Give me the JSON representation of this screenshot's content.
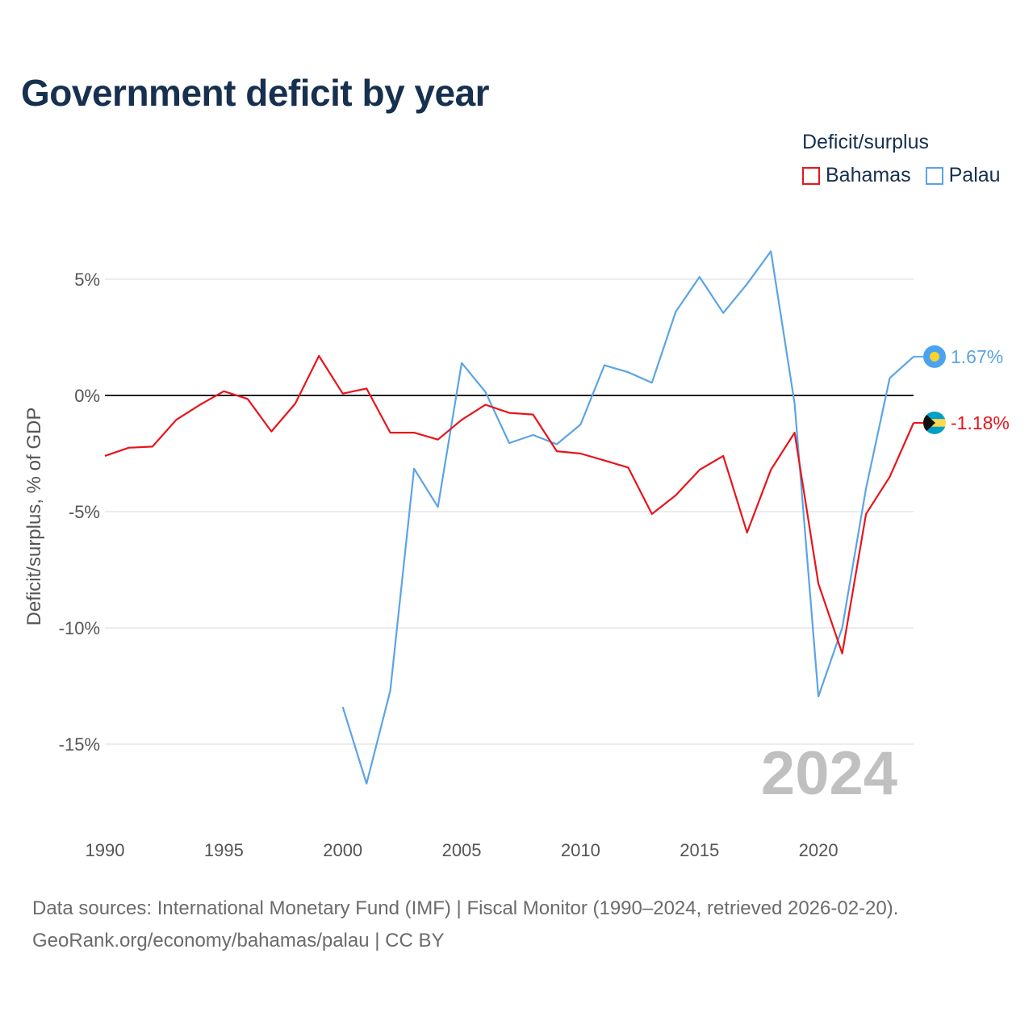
{
  "title": "Government deficit by year",
  "legend": {
    "title": "Deficit/surplus",
    "items": [
      {
        "name": "Bahamas",
        "color": "#e8141b"
      },
      {
        "name": "Palau",
        "color": "#5ba4e5"
      }
    ]
  },
  "colors": {
    "bahamas": "#e8141b",
    "palau": "#5ba4e5",
    "zero_line": "#222222",
    "grid": "#e6e6e6"
  },
  "watermark_year": "2024",
  "footer": {
    "sources": "Data sources: International Monetary Fund (IMF) | Fiscal Monitor (1990–2024, retrieved 2026-02-20).",
    "credit": "GeoRank.org/economy/bahamas/palau | CC BY"
  },
  "chart_data": {
    "type": "line",
    "title": "Government deficit by year",
    "xlabel": "",
    "ylabel": "Deficit/surplus, % of GDP",
    "xlim": [
      1990,
      2024
    ],
    "ylim": [
      -18,
      7
    ],
    "x_ticks": [
      1990,
      1995,
      2000,
      2005,
      2010,
      2015,
      2020
    ],
    "x_tick_labels": [
      "1990",
      "1995",
      "2000",
      "2005",
      "2010",
      "2015",
      "2020"
    ],
    "y_ticks": [
      5,
      0,
      -5,
      -10,
      -15
    ],
    "y_tick_labels": [
      "5%",
      "0%",
      "-5%",
      "-10%",
      "-15%"
    ],
    "zero_line": true,
    "grid": true,
    "series": [
      {
        "name": "Bahamas",
        "color": "#e8141b",
        "x": [
          1990,
          1991,
          1992,
          1993,
          1994,
          1995,
          1996,
          1997,
          1998,
          1999,
          2000,
          2001,
          2002,
          2003,
          2004,
          2005,
          2006,
          2007,
          2008,
          2009,
          2010,
          2011,
          2012,
          2013,
          2014,
          2015,
          2016,
          2017,
          2018,
          2019,
          2020,
          2021,
          2022,
          2023,
          2024
        ],
        "values": [
          -2.6,
          -2.25,
          -2.2,
          -1.05,
          -0.4,
          0.18,
          -0.15,
          -1.55,
          -0.35,
          1.7,
          0.08,
          0.3,
          -1.6,
          -1.6,
          -1.9,
          -1.05,
          -0.4,
          -0.75,
          -0.82,
          -2.4,
          -2.5,
          -2.8,
          -3.1,
          -5.1,
          -4.3,
          -3.2,
          -2.6,
          -5.9,
          -3.2,
          -1.6,
          -8.1,
          -11.1,
          -5.1,
          -3.5,
          -1.18
        ],
        "end_label": "-1.18%"
      },
      {
        "name": "Palau",
        "color": "#5ba4e5",
        "x": [
          2000,
          2001,
          2002,
          2003,
          2004,
          2005,
          2006,
          2007,
          2008,
          2009,
          2010,
          2011,
          2012,
          2013,
          2014,
          2015,
          2016,
          2017,
          2018,
          2019,
          2020,
          2021,
          2022,
          2023,
          2024
        ],
        "values": [
          -13.4,
          -16.7,
          -12.7,
          -3.15,
          -4.8,
          1.4,
          0.15,
          -2.05,
          -1.7,
          -2.1,
          -1.25,
          1.3,
          1.0,
          0.55,
          3.6,
          5.1,
          3.55,
          4.8,
          6.2,
          -0.35,
          -12.95,
          -10.0,
          -4.0,
          0.75,
          1.67
        ],
        "end_label": "1.67%"
      }
    ]
  }
}
